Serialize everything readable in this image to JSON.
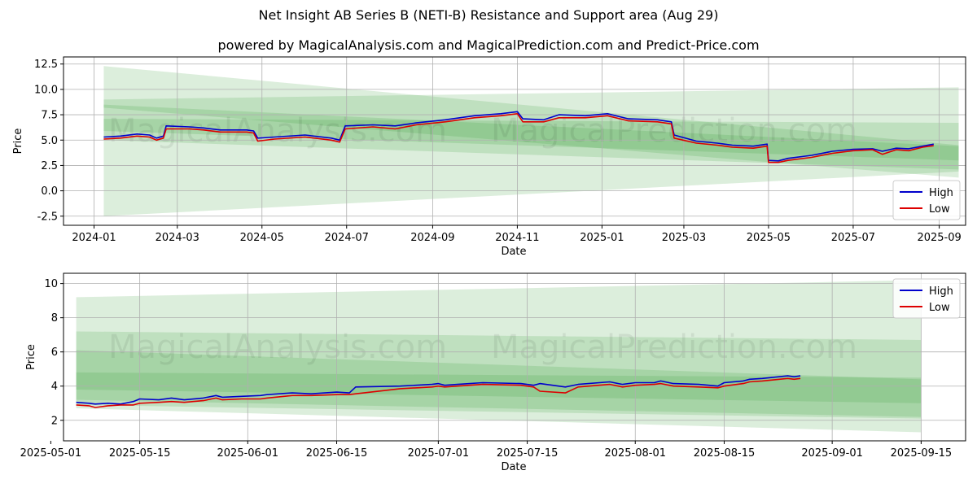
{
  "title": "Net Insight AB Series B (NETI-B) Resistance and Support area (Aug 29)",
  "subtitle": "powered by MagicalAnalysis.com and MagicalPrediction.com and Predict-Price.com",
  "watermarks": [
    "MagicalAnalysis.com",
    "MagicalPrediction.com"
  ],
  "colors": {
    "high": "#0000cc",
    "low": "#dd0000",
    "band": "#2e9a2e",
    "grid": "#b0b0b0"
  },
  "chart_data": [
    {
      "type": "line",
      "xlabel": "Date",
      "ylabel": "Price",
      "xlim": [
        "2023-12-10",
        "2025-09-20"
      ],
      "ylim": [
        -3.4,
        13.2
      ],
      "xticks": [
        "2024-01",
        "2024-03",
        "2024-05",
        "2024-07",
        "2024-09",
        "2024-11",
        "2025-01",
        "2025-03",
        "2025-05",
        "2025-07",
        "2025-09"
      ],
      "xtick_dates": [
        "2024-01-01",
        "2024-03-01",
        "2024-05-01",
        "2024-07-01",
        "2024-09-01",
        "2024-11-01",
        "2025-01-01",
        "2025-03-01",
        "2025-05-01",
        "2025-07-01",
        "2025-09-01"
      ],
      "yticks": [
        "-2.5",
        "0.0",
        "2.5",
        "5.0",
        "7.5",
        "10.0",
        "12.5"
      ],
      "ytick_values": [
        -2.5,
        0,
        2.5,
        5,
        7.5,
        10,
        12.5
      ],
      "grid": true,
      "legend": {
        "position": "bottom-right",
        "entries": [
          "High",
          "Low"
        ]
      },
      "bands": [
        {
          "x": [
            "2024-01-08",
            "2025-09-15"
          ],
          "upper": [
            12.3,
            4.5
          ],
          "lower": [
            -2.5,
            1.9
          ]
        },
        {
          "x": [
            "2024-01-08",
            "2025-09-15"
          ],
          "upper": [
            9.0,
            10.2
          ],
          "lower": [
            8.2,
            1.3
          ]
        },
        {
          "x": [
            "2024-01-08",
            "2025-09-15"
          ],
          "upper": [
            8.5,
            4.4
          ],
          "lower": [
            5.0,
            2.1
          ]
        },
        {
          "x": [
            "2024-01-08",
            "2025-09-15"
          ],
          "upper": [
            7.1,
            6.7
          ],
          "lower": [
            5.9,
            3.0
          ]
        }
      ],
      "series": [
        {
          "name": "High",
          "x": [
            "2024-01-08",
            "2024-01-20",
            "2024-02-01",
            "2024-02-10",
            "2024-02-15",
            "2024-02-20",
            "2024-02-22",
            "2024-03-10",
            "2024-03-20",
            "2024-04-01",
            "2024-04-20",
            "2024-04-25",
            "2024-04-28",
            "2024-05-10",
            "2024-06-01",
            "2024-06-20",
            "2024-06-26",
            "2024-06-30",
            "2024-07-20",
            "2024-08-05",
            "2024-08-20",
            "2024-09-10",
            "2024-10-01",
            "2024-10-20",
            "2024-11-01",
            "2024-11-05",
            "2024-11-20",
            "2024-12-01",
            "2024-12-20",
            "2025-01-05",
            "2025-01-20",
            "2025-02-10",
            "2025-02-20",
            "2025-02-22",
            "2025-03-10",
            "2025-03-25",
            "2025-04-05",
            "2025-04-20",
            "2025-04-30",
            "2025-05-01",
            "2025-05-08",
            "2025-05-15",
            "2025-06-01",
            "2025-06-16",
            "2025-07-01",
            "2025-07-15",
            "2025-07-22",
            "2025-08-01",
            "2025-08-10",
            "2025-08-20",
            "2025-08-28"
          ],
          "values": [
            5.3,
            5.4,
            5.6,
            5.5,
            5.2,
            5.4,
            6.4,
            6.3,
            6.2,
            6.0,
            6.0,
            5.9,
            5.2,
            5.3,
            5.5,
            5.2,
            5.0,
            6.4,
            6.5,
            6.4,
            6.7,
            7.0,
            7.4,
            7.6,
            7.8,
            7.1,
            7.0,
            7.5,
            7.4,
            7.6,
            7.1,
            7.0,
            6.8,
            5.5,
            4.9,
            4.7,
            4.5,
            4.4,
            4.6,
            3.0,
            2.95,
            3.2,
            3.5,
            3.9,
            4.1,
            4.15,
            3.9,
            4.2,
            4.15,
            4.4,
            4.6
          ]
        },
        {
          "name": "Low",
          "x": [
            "2024-01-08",
            "2024-01-20",
            "2024-02-01",
            "2024-02-10",
            "2024-02-15",
            "2024-02-20",
            "2024-02-22",
            "2024-03-10",
            "2024-03-20",
            "2024-04-01",
            "2024-04-20",
            "2024-04-25",
            "2024-04-28",
            "2024-05-10",
            "2024-06-01",
            "2024-06-20",
            "2024-06-26",
            "2024-06-30",
            "2024-07-20",
            "2024-08-05",
            "2024-08-20",
            "2024-09-10",
            "2024-10-01",
            "2024-10-20",
            "2024-11-01",
            "2024-11-05",
            "2024-11-20",
            "2024-12-01",
            "2024-12-20",
            "2025-01-05",
            "2025-01-20",
            "2025-02-10",
            "2025-02-20",
            "2025-02-22",
            "2025-03-10",
            "2025-03-25",
            "2025-04-05",
            "2025-04-20",
            "2025-04-30",
            "2025-05-01",
            "2025-05-08",
            "2025-05-15",
            "2025-06-01",
            "2025-06-16",
            "2025-07-01",
            "2025-07-15",
            "2025-07-22",
            "2025-08-01",
            "2025-08-10",
            "2025-08-20",
            "2025-08-28"
          ],
          "values": [
            5.1,
            5.2,
            5.4,
            5.3,
            5.0,
            5.2,
            6.1,
            6.1,
            6.0,
            5.8,
            5.8,
            5.7,
            4.9,
            5.1,
            5.3,
            5.0,
            4.8,
            6.1,
            6.3,
            6.1,
            6.5,
            6.8,
            7.2,
            7.4,
            7.6,
            6.8,
            6.8,
            7.2,
            7.2,
            7.4,
            6.9,
            6.8,
            6.6,
            5.2,
            4.7,
            4.5,
            4.3,
            4.2,
            4.4,
            2.8,
            2.8,
            3.0,
            3.3,
            3.7,
            3.95,
            4.05,
            3.6,
            4.05,
            3.95,
            4.3,
            4.45
          ]
        }
      ]
    },
    {
      "type": "line",
      "xlabel": "Date",
      "ylabel": "Price",
      "xlim": [
        "2025-05-03",
        "2025-09-22"
      ],
      "ylim": [
        0.8,
        10.6
      ],
      "xticks": [
        "2025-05-01",
        "2025-05-15",
        "2025-06-01",
        "2025-06-15",
        "2025-07-01",
        "2025-07-15",
        "2025-08-01",
        "2025-08-15",
        "2025-09-01",
        "2025-09-15"
      ],
      "yticks": [
        "2",
        "4",
        "6",
        "8",
        "10"
      ],
      "ytick_values": [
        2,
        4,
        6,
        8,
        10
      ],
      "grid": true,
      "legend": {
        "position": "top-right",
        "entries": [
          "High",
          "Low"
        ]
      },
      "bands": [
        {
          "x": [
            "2025-05-05",
            "2025-09-15"
          ],
          "upper": [
            9.2,
            10.2
          ],
          "lower": [
            2.7,
            1.3
          ]
        },
        {
          "x": [
            "2025-05-05",
            "2025-09-15"
          ],
          "upper": [
            7.2,
            6.7
          ],
          "lower": [
            2.9,
            2.1
          ]
        },
        {
          "x": [
            "2025-05-05",
            "2025-09-15"
          ],
          "upper": [
            6.1,
            4.4
          ],
          "lower": [
            3.2,
            2.2
          ]
        },
        {
          "x": [
            "2025-05-05",
            "2025-09-15"
          ],
          "upper": [
            4.8,
            4.5
          ],
          "lower": [
            3.8,
            3.0
          ]
        }
      ],
      "series": [
        {
          "name": "High",
          "x": [
            "2025-05-05",
            "2025-05-07",
            "2025-05-08",
            "2025-05-10",
            "2025-05-12",
            "2025-05-14",
            "2025-05-15",
            "2025-05-18",
            "2025-05-20",
            "2025-05-22",
            "2025-05-25",
            "2025-05-27",
            "2025-05-28",
            "2025-05-31",
            "2025-06-03",
            "2025-06-04",
            "2025-06-08",
            "2025-06-11",
            "2025-06-15",
            "2025-06-17",
            "2025-06-18",
            "2025-06-25",
            "2025-06-30",
            "2025-07-01",
            "2025-07-02",
            "2025-07-04",
            "2025-07-08",
            "2025-07-14",
            "2025-07-16",
            "2025-07-17",
            "2025-07-21",
            "2025-07-23",
            "2025-07-28",
            "2025-07-30",
            "2025-08-01",
            "2025-08-04",
            "2025-08-05",
            "2025-08-07",
            "2025-08-11",
            "2025-08-14",
            "2025-08-15",
            "2025-08-18",
            "2025-08-19",
            "2025-08-21",
            "2025-08-25",
            "2025-08-26",
            "2025-08-27"
          ],
          "values": [
            3.05,
            3.0,
            2.95,
            3.0,
            2.95,
            3.1,
            3.25,
            3.2,
            3.3,
            3.2,
            3.3,
            3.45,
            3.35,
            3.4,
            3.45,
            3.5,
            3.6,
            3.55,
            3.65,
            3.6,
            3.95,
            4.0,
            4.1,
            4.15,
            4.05,
            4.1,
            4.2,
            4.15,
            4.05,
            4.15,
            3.95,
            4.1,
            4.25,
            4.1,
            4.2,
            4.2,
            4.3,
            4.15,
            4.1,
            4.0,
            4.2,
            4.3,
            4.4,
            4.45,
            4.6,
            4.55,
            4.6
          ]
        },
        {
          "name": "Low",
          "x": [
            "2025-05-05",
            "2025-05-07",
            "2025-05-08",
            "2025-05-10",
            "2025-05-12",
            "2025-05-14",
            "2025-05-15",
            "2025-05-18",
            "2025-05-20",
            "2025-05-22",
            "2025-05-25",
            "2025-05-27",
            "2025-05-28",
            "2025-05-31",
            "2025-06-03",
            "2025-06-04",
            "2025-06-08",
            "2025-06-11",
            "2025-06-15",
            "2025-06-17",
            "2025-06-18",
            "2025-06-25",
            "2025-06-30",
            "2025-07-01",
            "2025-07-02",
            "2025-07-04",
            "2025-07-08",
            "2025-07-14",
            "2025-07-16",
            "2025-07-17",
            "2025-07-21",
            "2025-07-23",
            "2025-07-28",
            "2025-07-30",
            "2025-08-01",
            "2025-08-04",
            "2025-08-05",
            "2025-08-07",
            "2025-08-11",
            "2025-08-14",
            "2025-08-15",
            "2025-08-18",
            "2025-08-19",
            "2025-08-21",
            "2025-08-25",
            "2025-08-26",
            "2025-08-27"
          ],
          "values": [
            2.9,
            2.85,
            2.75,
            2.85,
            2.9,
            2.9,
            3.0,
            3.05,
            3.1,
            3.05,
            3.15,
            3.3,
            3.2,
            3.25,
            3.25,
            3.3,
            3.45,
            3.45,
            3.5,
            3.5,
            3.55,
            3.85,
            3.95,
            4.0,
            3.95,
            4.0,
            4.1,
            4.05,
            3.95,
            3.7,
            3.6,
            3.95,
            4.1,
            3.95,
            4.05,
            4.1,
            4.15,
            4.0,
            3.95,
            3.9,
            4.0,
            4.15,
            4.25,
            4.3,
            4.45,
            4.4,
            4.45
          ]
        }
      ]
    }
  ]
}
